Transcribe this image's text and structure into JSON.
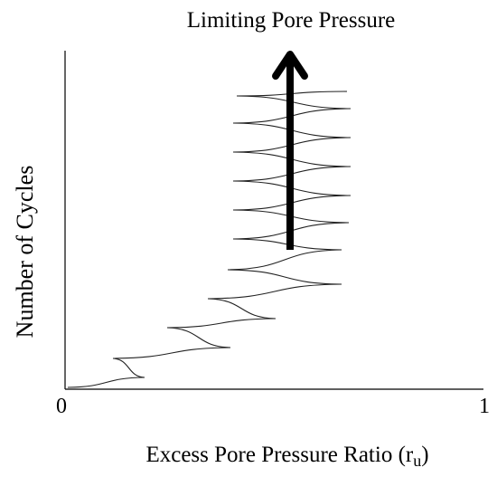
{
  "diagram": {
    "title": "Limiting Pore Pressure",
    "y_axis_label": "Number of Cycles",
    "x_axis_label_main": "Excess Pore Pressure Ratio (r",
    "x_axis_label_sub": "u",
    "x_axis_label_close": ")",
    "x_tick_min": "0",
    "x_tick_max": "1",
    "colors": {
      "axes": "#000000",
      "curve": "#222222",
      "arrow": "#000000",
      "background": "#ffffff"
    },
    "icons": {
      "arrow": "up-arrow-icon"
    }
  }
}
